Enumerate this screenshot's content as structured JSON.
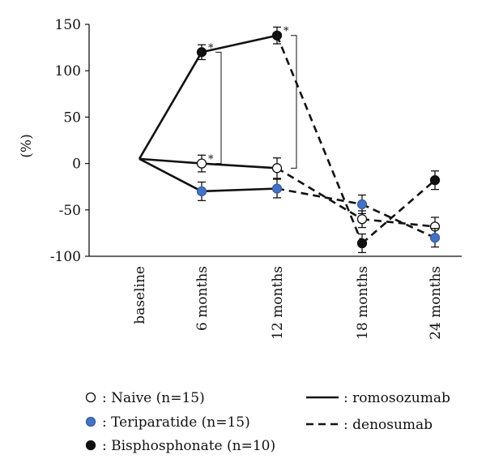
{
  "chart_data": {
    "type": "line",
    "ylabel": "(%)",
    "ylim": [
      -100,
      150
    ],
    "yticks": [
      150,
      100,
      50,
      0,
      -50,
      -100
    ],
    "categories": [
      "baseline",
      "6 months",
      "12 months",
      "18 months",
      "24 months"
    ],
    "grid": false,
    "colors": {
      "naive_fill": "#ffffff",
      "teriparatide_fill": "#4472c4",
      "bisphosphonate_fill": "#111111",
      "line": "#111111"
    },
    "series": [
      {
        "name": ": Naive (n=15)",
        "marker": "open-circle",
        "points": [
          {
            "x": "baseline",
            "y": 5
          },
          {
            "x": "6 months",
            "y": 0,
            "err": 9,
            "star": true
          },
          {
            "x": "12 months",
            "y": -5,
            "err": 11
          },
          {
            "x": "18 months",
            "y": -60,
            "err": 9
          },
          {
            "x": "24 months",
            "y": -68,
            "err": 10
          }
        ],
        "segments": [
          {
            "from": "baseline",
            "to": "6 months",
            "style": "solid"
          },
          {
            "from": "6 months",
            "to": "12 months",
            "style": "solid"
          },
          {
            "from": "12 months",
            "to": "18 months",
            "style": "dashed"
          },
          {
            "from": "18 months",
            "to": "24 months",
            "style": "dashed"
          }
        ]
      },
      {
        "name": ": Teriparatide (n=15)",
        "marker": "blue-circle",
        "points": [
          {
            "x": "baseline",
            "y": 5
          },
          {
            "x": "6 months",
            "y": -30,
            "err": 10
          },
          {
            "x": "12 months",
            "y": -27,
            "err": 10
          },
          {
            "x": "18 months",
            "y": -44,
            "err": 10
          },
          {
            "x": "24 months",
            "y": -80,
            "err": 10
          }
        ],
        "segments": [
          {
            "from": "baseline",
            "to": "6 months",
            "style": "solid"
          },
          {
            "from": "6 months",
            "to": "12 months",
            "style": "solid"
          },
          {
            "from": "12 months",
            "to": "18 months",
            "style": "dashed"
          },
          {
            "from": "18 months",
            "to": "24 months",
            "style": "dashed"
          }
        ]
      },
      {
        "name": ": Bisphosphonate (n=10)",
        "marker": "black-circle",
        "points": [
          {
            "x": "baseline",
            "y": 5
          },
          {
            "x": "6 months",
            "y": 120,
            "err": 8,
            "star": true
          },
          {
            "x": "12 months",
            "y": 138,
            "err": 9,
            "star": true
          },
          {
            "x": "18 months",
            "y": -86,
            "err": 10
          },
          {
            "x": "24 months",
            "y": -18,
            "err": 10
          }
        ],
        "segments": [
          {
            "from": "baseline",
            "to": "6 months",
            "style": "solid"
          },
          {
            "from": "6 months",
            "to": "12 months",
            "style": "solid"
          },
          {
            "from": "12 months",
            "to": "18 months",
            "style": "dashed"
          },
          {
            "from": "18 months",
            "to": "24 months",
            "style": "dashed"
          }
        ]
      }
    ],
    "significance_brackets": [
      {
        "x": "6 months",
        "y_top": 120,
        "y_bottom": 0,
        "label": "*"
      },
      {
        "x": "12 months",
        "y_top": 138,
        "y_bottom": -5,
        "label": "*"
      }
    ],
    "legend": {
      "markers": [
        {
          "marker": "open-circle",
          "label": ": Naive (n=15)"
        },
        {
          "marker": "blue-circle",
          "label": ": Teriparatide (n=15)"
        },
        {
          "marker": "black-circle",
          "label": ": Bisphosphonate (n=10)"
        }
      ],
      "lines": [
        {
          "style": "solid",
          "label": ": romosozumab"
        },
        {
          "style": "dashed",
          "label": ": denosumab"
        }
      ]
    }
  }
}
